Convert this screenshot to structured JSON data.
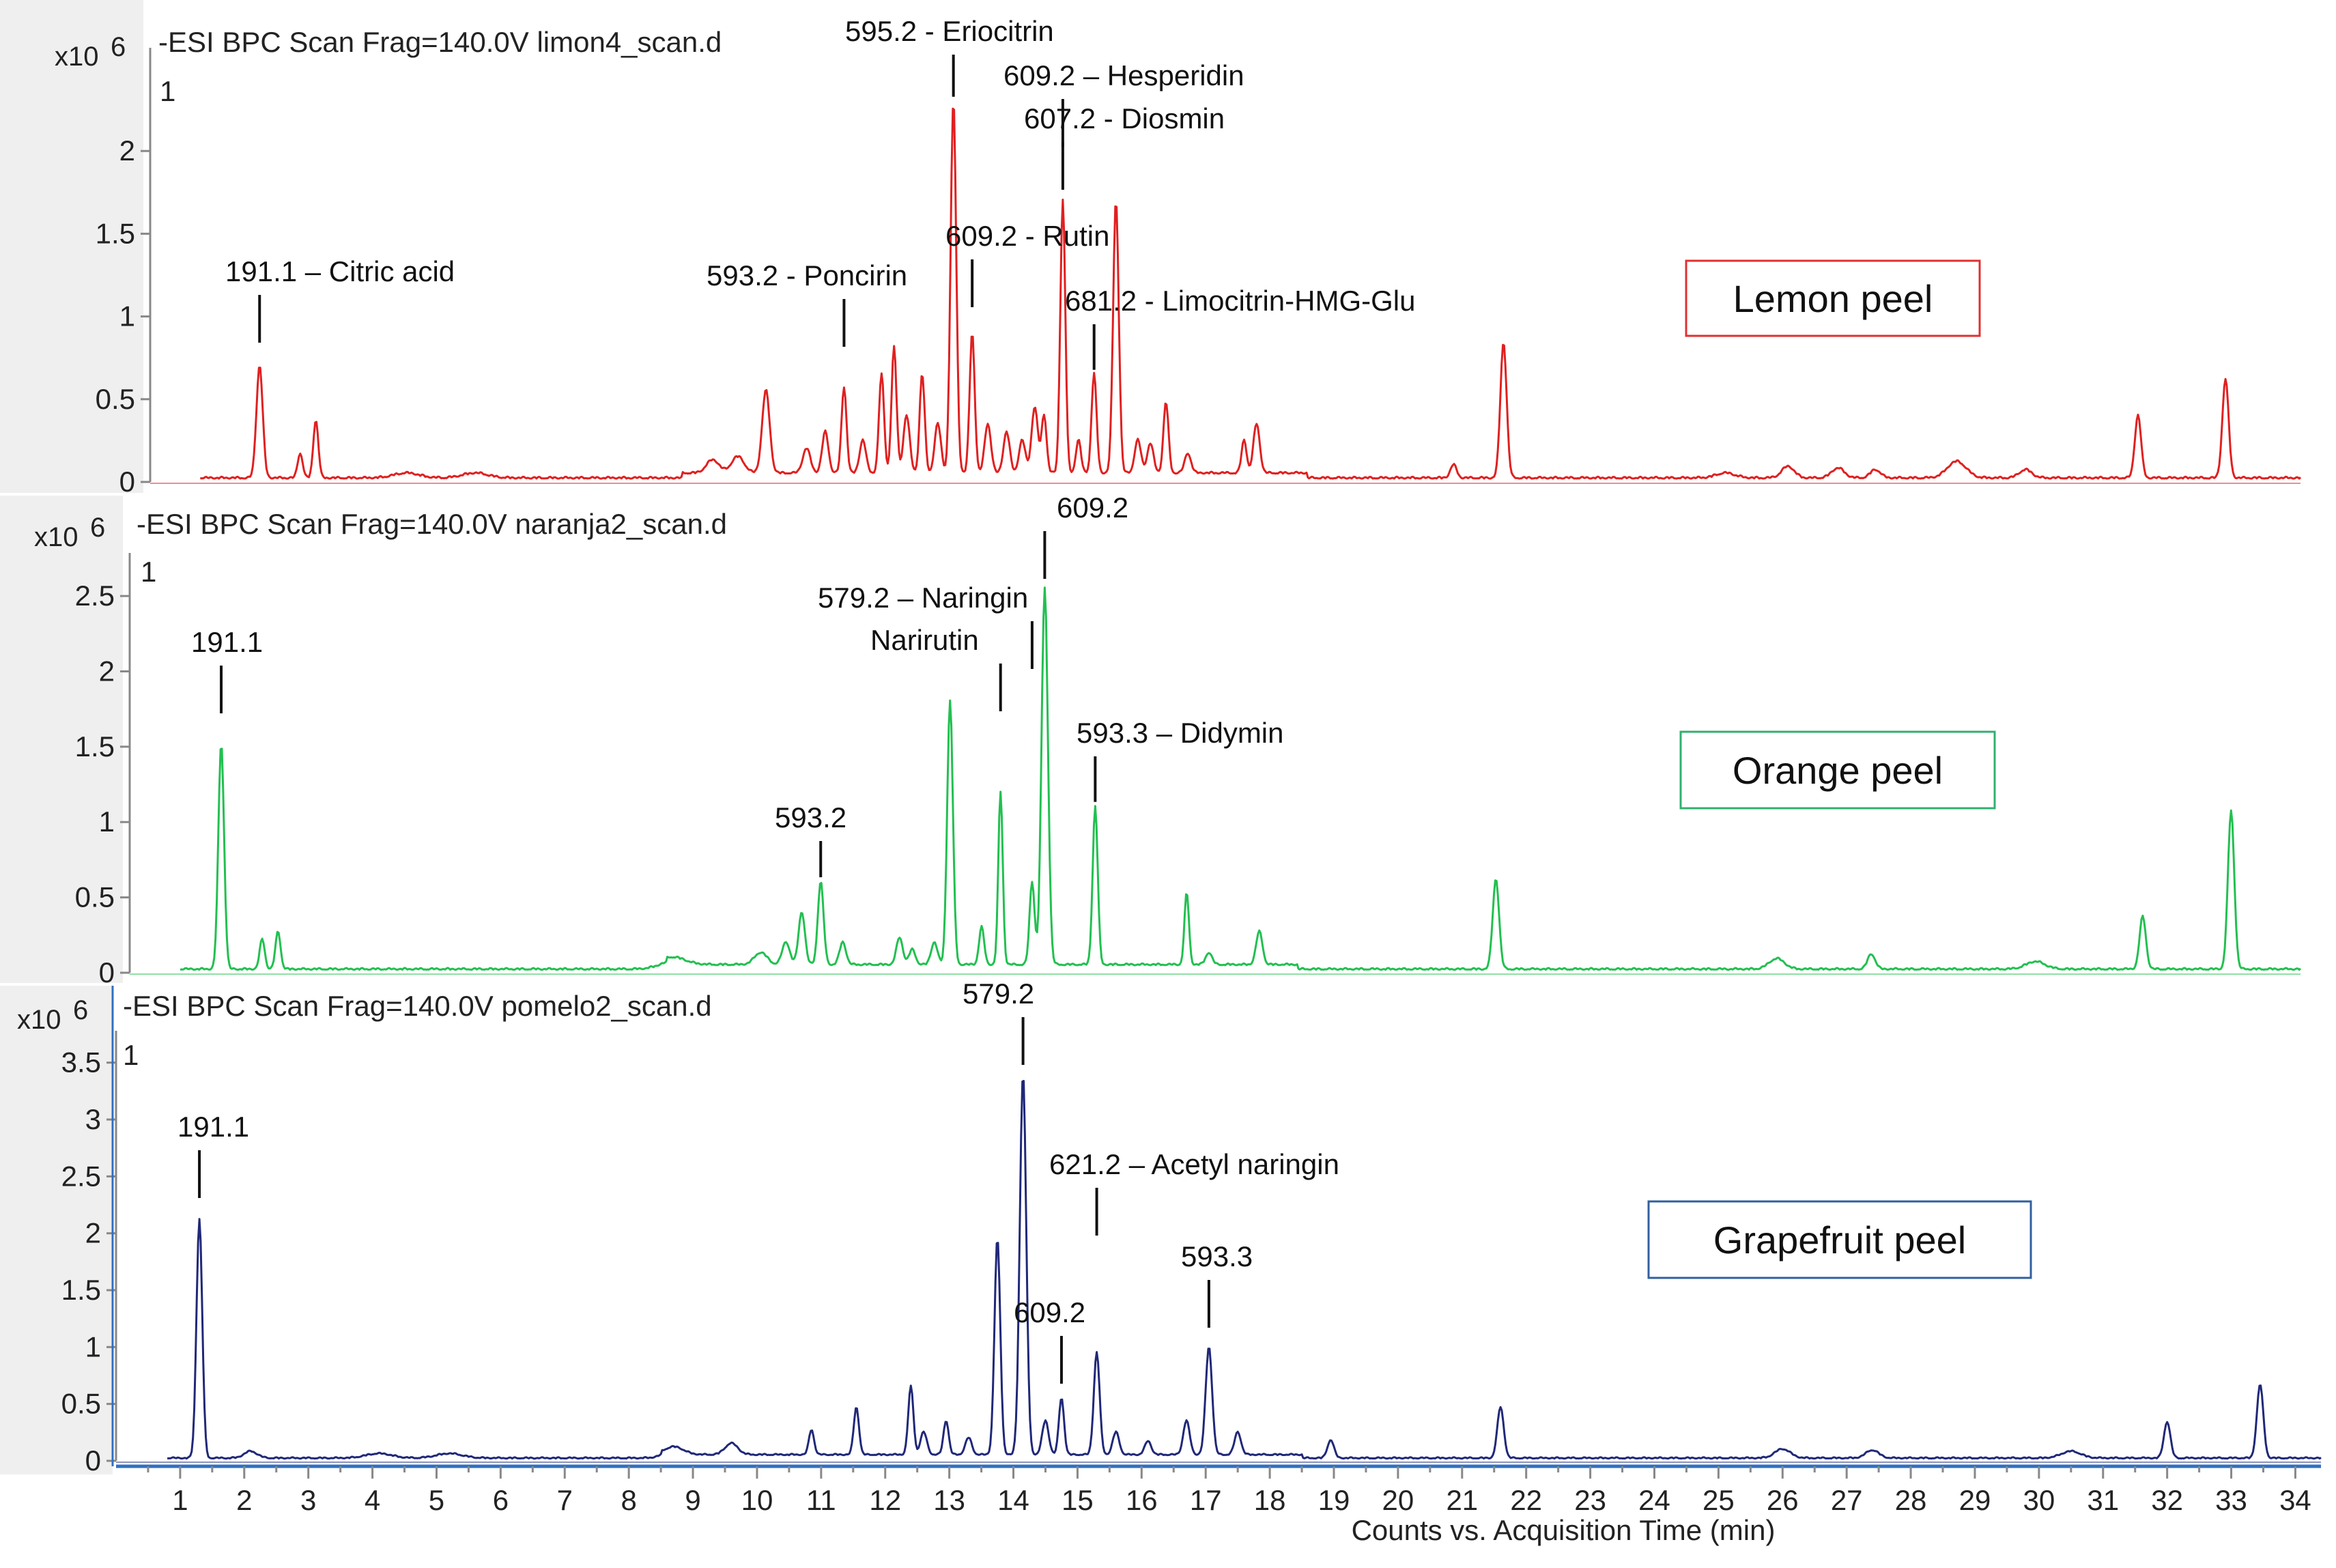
{
  "chart_data": [
    {
      "type": "line",
      "panel": "lemon",
      "header": "-ESI BPC Scan Frag=140.0V limon4_scan.d",
      "exponent_label": "x10",
      "exponent": "6",
      "trace_index": "1",
      "sample_label": "Lemon peel",
      "color": "#e02020",
      "box_color": "#e03030",
      "ylim": [
        0,
        2.5
      ],
      "yticks": [
        {
          "v": 0,
          "t": "0"
        },
        {
          "v": 0.5,
          "t": "0.5"
        },
        {
          "v": 1,
          "t": "1"
        },
        {
          "v": 1.5,
          "t": "1.5"
        },
        {
          "v": 2,
          "t": "2"
        }
      ],
      "baseline": 0.02,
      "peaks": [
        [
          1.75,
          0.68,
          0.05
        ],
        [
          2.4,
          0.15,
          0.04
        ],
        [
          2.65,
          0.35,
          0.04
        ],
        [
          4.1,
          0.03,
          0.2
        ],
        [
          5.2,
          0.03,
          0.2
        ],
        [
          9.0,
          0.08,
          0.1
        ],
        [
          9.4,
          0.1,
          0.1
        ],
        [
          9.85,
          0.5,
          0.06
        ],
        [
          10.5,
          0.15,
          0.06
        ],
        [
          10.8,
          0.25,
          0.05
        ],
        [
          11.1,
          0.52,
          0.04
        ],
        [
          11.4,
          0.2,
          0.05
        ],
        [
          11.7,
          0.6,
          0.04
        ],
        [
          11.9,
          0.76,
          0.04
        ],
        [
          12.1,
          0.35,
          0.05
        ],
        [
          12.35,
          0.6,
          0.04
        ],
        [
          12.6,
          0.3,
          0.05
        ],
        [
          12.85,
          2.25,
          0.045
        ],
        [
          13.15,
          0.85,
          0.04
        ],
        [
          13.4,
          0.3,
          0.05
        ],
        [
          13.7,
          0.25,
          0.05
        ],
        [
          13.95,
          0.2,
          0.05
        ],
        [
          14.15,
          0.4,
          0.05
        ],
        [
          14.3,
          0.35,
          0.04
        ],
        [
          14.6,
          1.65,
          0.04
        ],
        [
          14.85,
          0.2,
          0.04
        ],
        [
          15.1,
          0.6,
          0.04
        ],
        [
          15.45,
          1.65,
          0.045
        ],
        [
          15.8,
          0.2,
          0.05
        ],
        [
          16.0,
          0.18,
          0.05
        ],
        [
          16.25,
          0.43,
          0.04
        ],
        [
          16.6,
          0.12,
          0.05
        ],
        [
          17.5,
          0.2,
          0.04
        ],
        [
          17.7,
          0.3,
          0.05
        ],
        [
          20.85,
          0.08,
          0.05
        ],
        [
          21.65,
          0.82,
          0.05
        ],
        [
          25.2,
          0.03,
          0.15
        ],
        [
          26.2,
          0.07,
          0.1
        ],
        [
          27.0,
          0.06,
          0.1
        ],
        [
          27.6,
          0.05,
          0.08
        ],
        [
          28.9,
          0.1,
          0.15
        ],
        [
          30.0,
          0.05,
          0.1
        ],
        [
          31.8,
          0.38,
          0.05
        ],
        [
          33.2,
          0.6,
          0.05
        ]
      ],
      "annotations": [
        {
          "text": "191.1 – Citric acid",
          "x": 1.75
        },
        {
          "text": "593.2 - Poncirin",
          "x": 11.1
        },
        {
          "text": "595.2 - Eriocitrin",
          "x": 12.85
        },
        {
          "text": "609.2 - Rutin",
          "x": 13.15
        },
        {
          "text": "609.2 – Hesperidin",
          "x": 14.6
        },
        {
          "text": "607.2 - Diosmin",
          "x": 14.6
        },
        {
          "text": "681.2 - Limocitrin-HMG-Glu",
          "x": 15.1
        }
      ]
    },
    {
      "type": "line",
      "panel": "orange",
      "header": "-ESI BPC Scan Frag=140.0V naranja2_scan.d",
      "exponent_label": "x10",
      "exponent": "6",
      "trace_index": "1",
      "sample_label": "Orange peel",
      "color": "#22c050",
      "box_color": "#30b070",
      "ylim": [
        0,
        2.65
      ],
      "yticks": [
        {
          "v": 0,
          "t": "0"
        },
        {
          "v": 0.5,
          "t": "0.5"
        },
        {
          "v": 1,
          "t": "1"
        },
        {
          "v": 1.5,
          "t": "1.5"
        },
        {
          "v": 2,
          "t": "2"
        },
        {
          "v": 2.5,
          "t": "2.5"
        }
      ],
      "baseline": 0.02,
      "peaks": [
        [
          1.45,
          1.5,
          0.045
        ],
        [
          2.1,
          0.2,
          0.04
        ],
        [
          2.35,
          0.25,
          0.04
        ],
        [
          8.6,
          0.05,
          0.2
        ],
        [
          10.0,
          0.08,
          0.1
        ],
        [
          10.4,
          0.15,
          0.06
        ],
        [
          10.65,
          0.35,
          0.05
        ],
        [
          10.95,
          0.55,
          0.045
        ],
        [
          11.3,
          0.15,
          0.05
        ],
        [
          12.2,
          0.18,
          0.05
        ],
        [
          12.4,
          0.1,
          0.05
        ],
        [
          12.75,
          0.15,
          0.05
        ],
        [
          13.0,
          1.75,
          0.045
        ],
        [
          13.5,
          0.25,
          0.04
        ],
        [
          13.8,
          1.15,
          0.035
        ],
        [
          14.3,
          0.55,
          0.04
        ],
        [
          14.5,
          2.5,
          0.05
        ],
        [
          15.3,
          1.05,
          0.04
        ],
        [
          16.75,
          0.48,
          0.035
        ],
        [
          17.1,
          0.08,
          0.05
        ],
        [
          17.9,
          0.22,
          0.05
        ],
        [
          21.65,
          0.6,
          0.05
        ],
        [
          26.1,
          0.07,
          0.12
        ],
        [
          27.6,
          0.1,
          0.06
        ],
        [
          30.2,
          0.05,
          0.15
        ],
        [
          31.9,
          0.35,
          0.05
        ],
        [
          33.3,
          1.05,
          0.05
        ]
      ],
      "annotations": [
        {
          "text": "191.1",
          "x": 1.45
        },
        {
          "text": "593.2",
          "x": 10.95
        },
        {
          "text": "579.2 – Naringin",
          "x": 14.3
        },
        {
          "text": "Narirutin",
          "x": 13.8
        },
        {
          "text": "609.2",
          "x": 14.5
        },
        {
          "text": "593.3 – Didymin",
          "x": 15.3
        }
      ]
    },
    {
      "type": "line",
      "panel": "grapefruit",
      "header": "-ESI BPC Scan Frag=140.0V pomelo2_scan.d",
      "exponent_label": "x10",
      "exponent": "6",
      "trace_index": "1",
      "sample_label": "Grapefruit peel",
      "color": "#202878",
      "box_color": "#3060a0",
      "ylim": [
        0,
        3.6
      ],
      "yticks": [
        {
          "v": 0,
          "t": "0"
        },
        {
          "v": 0.5,
          "t": "0.5"
        },
        {
          "v": 1,
          "t": "1"
        },
        {
          "v": 1.5,
          "t": "1.5"
        },
        {
          "v": 2,
          "t": "2"
        },
        {
          "v": 2.5,
          "t": "2.5"
        },
        {
          "v": 3,
          "t": "3"
        },
        {
          "v": 3.5,
          "t": "3.5"
        }
      ],
      "baseline": 0.02,
      "peaks": [
        [
          1.3,
          2.1,
          0.045
        ],
        [
          2.1,
          0.06,
          0.1
        ],
        [
          4.1,
          0.04,
          0.2
        ],
        [
          5.2,
          0.04,
          0.2
        ],
        [
          8.7,
          0.07,
          0.15
        ],
        [
          9.6,
          0.1,
          0.1
        ],
        [
          10.85,
          0.22,
          0.04
        ],
        [
          11.55,
          0.42,
          0.04
        ],
        [
          12.4,
          0.6,
          0.04
        ],
        [
          12.6,
          0.2,
          0.05
        ],
        [
          12.95,
          0.3,
          0.04
        ],
        [
          13.3,
          0.15,
          0.05
        ],
        [
          13.75,
          1.9,
          0.045
        ],
        [
          14.15,
          3.35,
          0.05
        ],
        [
          14.5,
          0.3,
          0.05
        ],
        [
          14.75,
          0.5,
          0.04
        ],
        [
          15.3,
          0.9,
          0.045
        ],
        [
          15.6,
          0.2,
          0.05
        ],
        [
          16.1,
          0.12,
          0.05
        ],
        [
          16.7,
          0.3,
          0.05
        ],
        [
          17.05,
          0.95,
          0.05
        ],
        [
          17.5,
          0.2,
          0.05
        ],
        [
          18.95,
          0.16,
          0.05
        ],
        [
          21.6,
          0.45,
          0.05
        ],
        [
          26.0,
          0.08,
          0.12
        ],
        [
          27.4,
          0.07,
          0.1
        ],
        [
          30.5,
          0.06,
          0.15
        ],
        [
          32.0,
          0.32,
          0.05
        ],
        [
          33.45,
          0.65,
          0.05
        ]
      ],
      "annotations": [
        {
          "text": "191.1",
          "x": 1.3
        },
        {
          "text": "579.2",
          "x": 14.15
        },
        {
          "text": "621.2 – Acetyl naringin",
          "x": 15.3
        },
        {
          "text": "609.2",
          "x": 14.75
        },
        {
          "text": "593.3",
          "x": 17.05
        }
      ]
    }
  ],
  "x_axis": {
    "label": "Counts vs. Acquisition Time (min)",
    "xlim": [
      0,
      34.4
    ],
    "ticks": [
      "1",
      "2",
      "3",
      "4",
      "5",
      "6",
      "7",
      "8",
      "9",
      "10",
      "11",
      "12",
      "13",
      "14",
      "15",
      "16",
      "17",
      "18",
      "19",
      "20",
      "21",
      "22",
      "23",
      "24",
      "25",
      "26",
      "27",
      "28",
      "29",
      "30",
      "31",
      "32",
      "33",
      "34"
    ]
  }
}
